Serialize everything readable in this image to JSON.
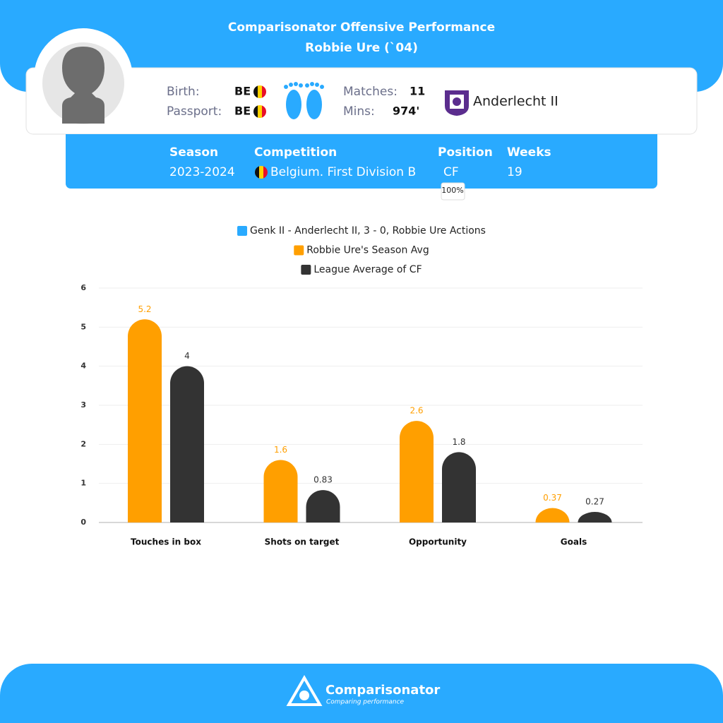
{
  "header": {
    "title": "Comparisonator Offensive Performance",
    "subtitle": "Robbie Ure (`04)"
  },
  "player": {
    "birth_label": "Birth:",
    "birth": "BE",
    "passport_label": "Passport:",
    "passport": "BE",
    "matches_label": "Matches:",
    "matches": "11",
    "mins_label": "Mins:",
    "mins": "974'",
    "club": "Anderlecht II"
  },
  "season": {
    "headers": [
      "Season",
      "Competition",
      "Position",
      "Weeks"
    ],
    "values": [
      "2023-2024",
      "Belgium. First Division B",
      "CF",
      "19"
    ],
    "position_share": "100%"
  },
  "chart_data": {
    "type": "bar",
    "categories": [
      "Touches in box",
      "Shots on target",
      "Opportunity",
      "Goals"
    ],
    "series": [
      {
        "name": "Genk II - Anderlecht II, 3 - 0, Robbie Ure Actions",
        "color": "#29aaff",
        "values": [
          null,
          null,
          null,
          null
        ]
      },
      {
        "name": "Robbie Ure's Season Avg",
        "color": "#ff9f00",
        "values": [
          5.2,
          1.6,
          2.6,
          0.37
        ]
      },
      {
        "name": "League Average of CF",
        "color": "#333333",
        "values": [
          4,
          0.83,
          1.8,
          0.27
        ]
      }
    ],
    "ylim": [
      0,
      6
    ],
    "yticks": [
      0,
      1,
      2,
      3,
      4,
      5,
      6
    ],
    "grid": true
  },
  "footer": {
    "brand": "Comparisonator",
    "tagline": "Comparing performance"
  }
}
